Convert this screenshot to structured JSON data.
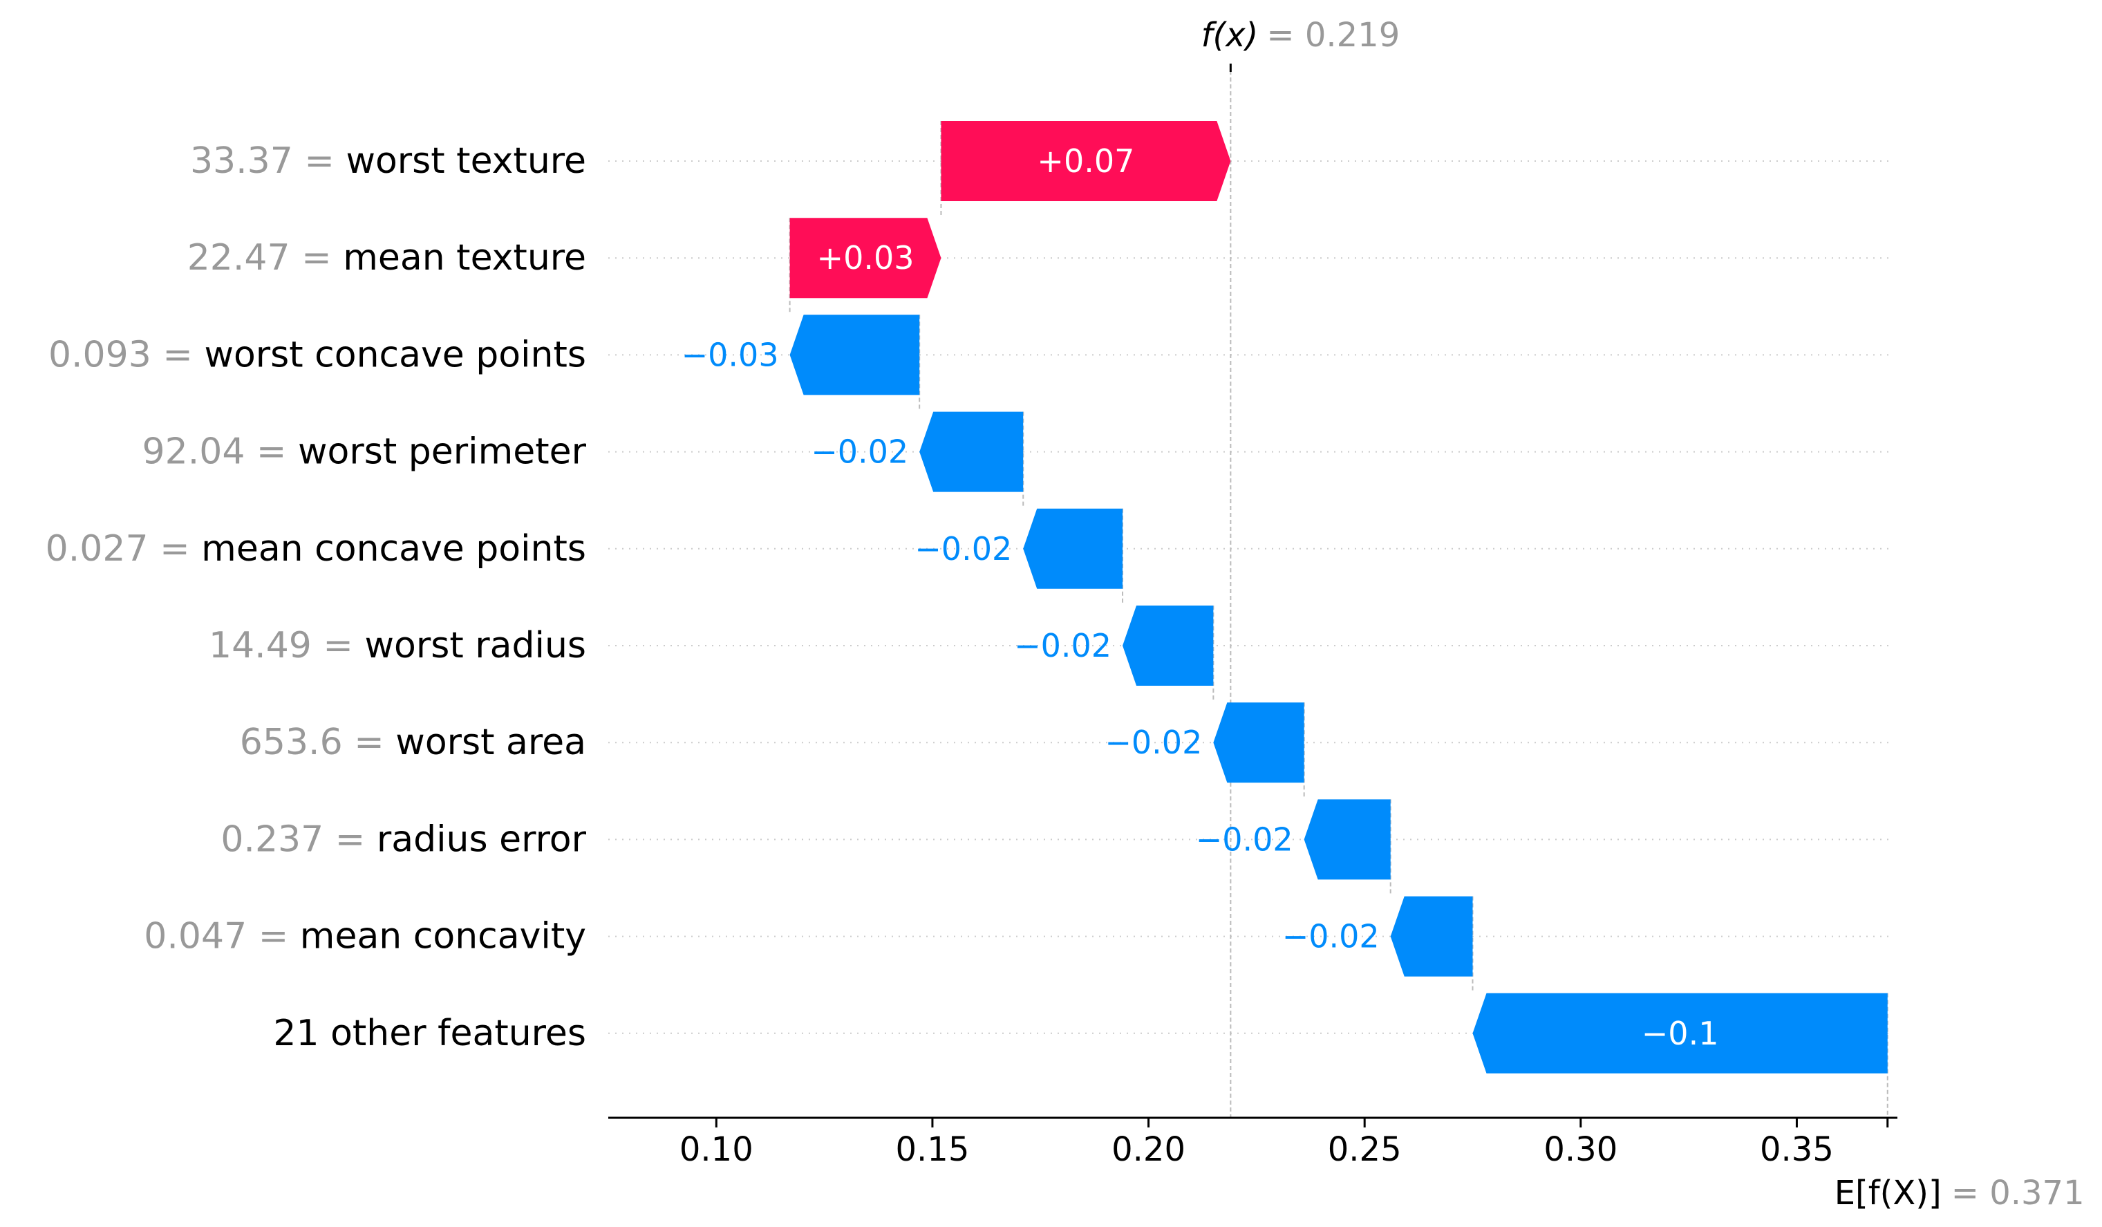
{
  "chart_data": {
    "type": "waterfall",
    "fx_label": "f(x)",
    "fx_value": "= 0.219",
    "efx_label": "E[f(X)]",
    "efx_value": "= 0.371",
    "x_ticks": [
      "0.10",
      "0.15",
      "0.20",
      "0.25",
      "0.30",
      "0.35"
    ],
    "x_tick_values": [
      0.1,
      0.15,
      0.2,
      0.25,
      0.3,
      0.35
    ],
    "xlim": [
      0.075,
      0.372
    ],
    "fx": 0.219,
    "efx": 0.371,
    "features": [
      {
        "value": "33.37",
        "name": "worst texture",
        "start": 0.152,
        "end": 0.219,
        "label": "+0.07"
      },
      {
        "value": "22.47",
        "name": "mean texture",
        "start": 0.117,
        "end": 0.152,
        "label": "+0.03"
      },
      {
        "value": "0.093",
        "name": "worst concave points",
        "start": 0.147,
        "end": 0.117,
        "label": "−0.03"
      },
      {
        "value": "92.04",
        "name": "worst perimeter",
        "start": 0.171,
        "end": 0.147,
        "label": "−0.02"
      },
      {
        "value": "0.027",
        "name": "mean concave points",
        "start": 0.194,
        "end": 0.171,
        "label": "−0.02"
      },
      {
        "value": "14.49",
        "name": "worst radius",
        "start": 0.215,
        "end": 0.194,
        "label": "−0.02"
      },
      {
        "value": "653.6",
        "name": "worst area",
        "start": 0.236,
        "end": 0.215,
        "label": "−0.02"
      },
      {
        "value": "0.237",
        "name": "radius error",
        "start": 0.256,
        "end": 0.236,
        "label": "−0.02"
      },
      {
        "value": "0.047",
        "name": "mean concavity",
        "start": 0.275,
        "end": 0.256,
        "label": "−0.02"
      },
      {
        "value": "",
        "name": "21 other features",
        "start": 0.371,
        "end": 0.275,
        "label": "−0.1"
      }
    ],
    "colors": {
      "positive": "#ff0d57",
      "negative": "#008bfb",
      "grey": "#999999"
    }
  }
}
